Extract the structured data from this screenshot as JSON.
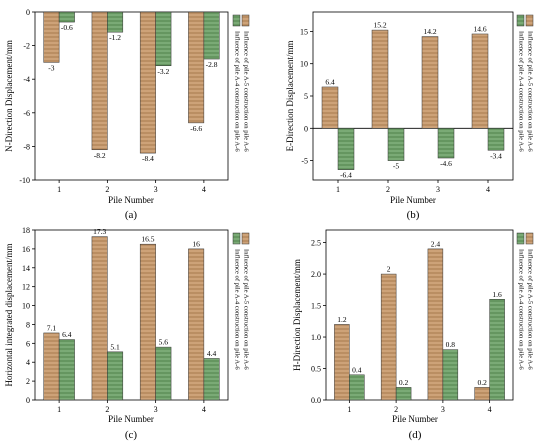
{
  "colors": {
    "a5_fill": "#c79a6e",
    "a4_fill": "#6fa06a",
    "axis": "#000000"
  },
  "chart_data": [
    {
      "panel": "(a)",
      "type": "bar",
      "xlabel": "Pile Number",
      "ylabel": "N-Direction Displacement/mm",
      "categories": [
        "1",
        "2",
        "3",
        "4"
      ],
      "ylim": [
        -10,
        0
      ],
      "yticks": [
        -10,
        -8,
        -6,
        -4,
        -2,
        0
      ],
      "series": [
        {
          "name": "Influence of pile A-5 construction on pile A-6",
          "values": [
            -3,
            -8.2,
            -8.4,
            -6.6
          ]
        },
        {
          "name": "Influence of pile A-4 construction on pile A-6",
          "values": [
            -0.6,
            -1.2,
            -3.2,
            -2.8
          ]
        }
      ],
      "labels": [
        [
          "-3",
          "-8.2",
          "-8.4",
          "-6.6"
        ],
        [
          "-0.6",
          "-1.2",
          "-3.2",
          "-2.8"
        ]
      ]
    },
    {
      "panel": "(b)",
      "type": "bar",
      "xlabel": "Pile Number",
      "ylabel": "E-Direction Displacement/mm",
      "categories": [
        "1",
        "2",
        "3",
        "4"
      ],
      "ylim": [
        -8,
        18
      ],
      "yticks": [
        -5,
        0,
        5,
        10,
        15
      ],
      "series": [
        {
          "name": "Influence of pile A-5 construction on pile A-6",
          "values": [
            6.4,
            15.2,
            14.2,
            14.6
          ]
        },
        {
          "name": "Influence of pile A-4 construction on pile A-6",
          "values": [
            -6.4,
            -5,
            -4.6,
            -3.4
          ]
        }
      ],
      "labels": [
        [
          "6.4",
          "15.2",
          "14.2",
          "14.6"
        ],
        [
          "-6.4",
          "-5",
          "-4.6",
          "-3.4"
        ]
      ]
    },
    {
      "panel": "(c)",
      "type": "bar",
      "xlabel": "Pile Number",
      "ylabel": "Horizontal integrated displacement/mm",
      "categories": [
        "1",
        "2",
        "3",
        "4"
      ],
      "ylim": [
        0,
        18
      ],
      "yticks": [
        0,
        2,
        4,
        6,
        8,
        10,
        12,
        14,
        16,
        18
      ],
      "series": [
        {
          "name": "Influence of pile A-5 construction on pile A-6",
          "values": [
            7.1,
            17.3,
            16.5,
            16
          ]
        },
        {
          "name": "Influence of pile A-4 construction on pile A-6",
          "values": [
            6.4,
            5.1,
            5.6,
            4.4
          ]
        }
      ],
      "labels": [
        [
          "7.1",
          "17.3",
          "16.5",
          "16"
        ],
        [
          "6.4",
          "5.1",
          "5.6",
          "4.4"
        ]
      ]
    },
    {
      "panel": "(d)",
      "type": "bar",
      "xlabel": "Pile Number",
      "ylabel": "H-Direction Displacement/mm",
      "categories": [
        "1",
        "2",
        "3",
        "4"
      ],
      "ylim": [
        0,
        2.7
      ],
      "yticks": [
        0,
        0.5,
        1,
        1.5,
        2,
        2.5
      ],
      "ytick_labels": [
        "0.0",
        "0.5",
        "1.0",
        "1.5",
        "2.0",
        "2.5"
      ],
      "series": [
        {
          "name": "Influence of pile A-5 construction on pile A-6",
          "values": [
            1.2,
            2,
            2.4,
            0.2
          ]
        },
        {
          "name": "Influence of pile A-4 construction on pile A-6",
          "values": [
            0.4,
            0.2,
            0.8,
            1.6
          ]
        }
      ],
      "labels": [
        [
          "1.2",
          "2",
          "2.4",
          "0.2"
        ],
        [
          "0.4",
          "0.2",
          "0.8",
          "1.6"
        ]
      ]
    }
  ]
}
